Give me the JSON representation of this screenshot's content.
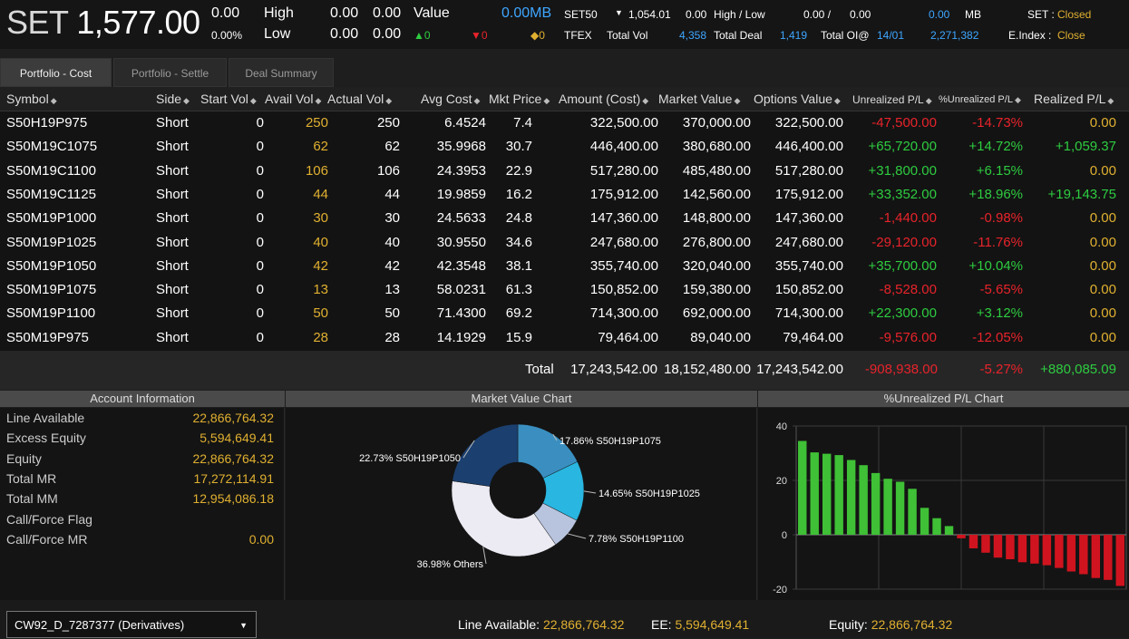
{
  "top": {
    "index_label": "SET",
    "index_value": "1,577.00",
    "chg": "0.00",
    "chg_pct": "0.00%",
    "high_label": "High",
    "high_v1": "0.00",
    "high_v2": "0.00",
    "low_label": "Low",
    "low_v1": "0.00",
    "low_v2": "0.00",
    "value_label": "Value",
    "value_v": "0.00MB",
    "up": "▲0",
    "down": "▼0",
    "unch": "◆0",
    "set50_label": "SET50",
    "set50_arrow": "▼",
    "set50_value": "1,054.01",
    "set50_chg": "0.00",
    "hl_label": "High / Low",
    "hl_high": "0.00 /",
    "hl_low": "0.00",
    "mb_value": "0.00",
    "mb_unit": "MB",
    "tfex_label": "TFEX",
    "totvol_label": "Total Vol",
    "totvol": "4,358",
    "totdeal_label": "Total Deal",
    "totdeal": "1,419",
    "totoi_label": "Total OI@",
    "totoi_date": "14/01",
    "totoi": "2,271,382",
    "set_status_label": "SET :",
    "set_status": "Closed",
    "eindex_label": "E.Index :",
    "eindex_status": "Close"
  },
  "tabs": [
    "Portfolio - Cost",
    "Portfolio - Settle",
    "Deal Summary"
  ],
  "columns": [
    "Symbol",
    "Side",
    "Start Vol",
    "Avail Vol",
    "Actual Vol",
    "Avg Cost",
    "Mkt Price",
    "Amount (Cost)",
    "Market Value",
    "Options Value",
    "Unrealized P/L",
    "%Unrealized P/L",
    "Realized P/L"
  ],
  "rows": [
    [
      "S50H19P975",
      "Short",
      "0",
      "250",
      "250",
      "6.4524",
      "7.4",
      "322,500.00",
      "370,000.00",
      "322,500.00",
      "-47,500.00",
      "-14.73%",
      "0.00"
    ],
    [
      "S50M19C1075",
      "Short",
      "0",
      "62",
      "62",
      "35.9968",
      "30.7",
      "446,400.00",
      "380,680.00",
      "446,400.00",
      "+65,720.00",
      "+14.72%",
      "+1,059.37"
    ],
    [
      "S50M19C1100",
      "Short",
      "0",
      "106",
      "106",
      "24.3953",
      "22.9",
      "517,280.00",
      "485,480.00",
      "517,280.00",
      "+31,800.00",
      "+6.15%",
      "0.00"
    ],
    [
      "S50M19C1125",
      "Short",
      "0",
      "44",
      "44",
      "19.9859",
      "16.2",
      "175,912.00",
      "142,560.00",
      "175,912.00",
      "+33,352.00",
      "+18.96%",
      "+19,143.75"
    ],
    [
      "S50M19P1000",
      "Short",
      "0",
      "30",
      "30",
      "24.5633",
      "24.8",
      "147,360.00",
      "148,800.00",
      "147,360.00",
      "-1,440.00",
      "-0.98%",
      "0.00"
    ],
    [
      "S50M19P1025",
      "Short",
      "0",
      "40",
      "40",
      "30.9550",
      "34.6",
      "247,680.00",
      "276,800.00",
      "247,680.00",
      "-29,120.00",
      "-11.76%",
      "0.00"
    ],
    [
      "S50M19P1050",
      "Short",
      "0",
      "42",
      "42",
      "42.3548",
      "38.1",
      "355,740.00",
      "320,040.00",
      "355,740.00",
      "+35,700.00",
      "+10.04%",
      "0.00"
    ],
    [
      "S50M19P1075",
      "Short",
      "0",
      "13",
      "13",
      "58.0231",
      "61.3",
      "150,852.00",
      "159,380.00",
      "150,852.00",
      "-8,528.00",
      "-5.65%",
      "0.00"
    ],
    [
      "S50M19P1100",
      "Short",
      "0",
      "50",
      "50",
      "71.4300",
      "69.2",
      "714,300.00",
      "692,000.00",
      "714,300.00",
      "+22,300.00",
      "+3.12%",
      "0.00"
    ],
    [
      "S50M19P975",
      "Short",
      "0",
      "28",
      "28",
      "14.1929",
      "15.9",
      "79,464.00",
      "89,040.00",
      "79,464.00",
      "-9,576.00",
      "-12.05%",
      "0.00"
    ]
  ],
  "totals": {
    "label": "Total",
    "amount": "17,243,542.00",
    "market": "18,152,480.00",
    "options": "17,243,542.00",
    "upl": "-908,938.00",
    "upl_pct": "-5.27%",
    "rpl": "+880,085.09"
  },
  "sections": {
    "account": "Account Information",
    "mv_chart": "Market Value Chart",
    "upl_chart": "%Unrealized P/L Chart"
  },
  "account": [
    {
      "label": "Line Available",
      "value": "22,866,764.32"
    },
    {
      "label": "Excess Equity",
      "value": "5,594,649.41"
    },
    {
      "label": "Equity",
      "value": "22,866,764.32"
    },
    {
      "label": "Total MR",
      "value": "17,272,114.91"
    },
    {
      "label": "Total MM",
      "value": "12,954,086.18"
    },
    {
      "label": "Call/Force Flag",
      "value": ""
    },
    {
      "label": "Call/Force MR",
      "value": "0.00"
    }
  ],
  "chart_data": [
    {
      "type": "pie",
      "title": "Market Value Chart",
      "slices": [
        {
          "label": "17.86% S50H19P1075",
          "value": 17.86,
          "color": "#3a8fc0"
        },
        {
          "label": "14.65% S50H19P1025",
          "value": 14.65,
          "color": "#29b6e0"
        },
        {
          "label": "7.78% S50H19P1100",
          "value": 7.78,
          "color": "#b8c4de"
        },
        {
          "label": "36.98% Others",
          "value": 36.98,
          "color": "#eceaf2"
        },
        {
          "label": "22.73% S50H19P1050",
          "value": 22.73,
          "color": "#1b3f6e"
        }
      ]
    },
    {
      "type": "bar",
      "title": "%Unrealized P/L Chart",
      "ylim": [
        -20,
        40
      ],
      "yticks": [
        "40",
        "20",
        "0",
        "-20"
      ],
      "values": [
        34.5,
        30.3,
        29.8,
        29.3,
        27.5,
        25.6,
        22.7,
        20.6,
        19.5,
        16.9,
        9.9,
        6.1,
        3.2,
        -1.3,
        -5.0,
        -6.6,
        -8.4,
        -9.0,
        -10.1,
        -10.6,
        -11.2,
        -12.2,
        -13.5,
        -14.5,
        -15.9,
        -16.6,
        -18.8
      ],
      "colors": {
        "pos": "#3fc036",
        "neg": "#d0141f"
      }
    }
  ],
  "bottom": {
    "account_select": "CW92_D_7287377 (Derivatives)",
    "line_label": "Line Available:",
    "line_value": "22,866,764.32",
    "ee_label": "EE:",
    "ee_value": "5,594,649.41",
    "eq_label": "Equity:",
    "eq_value": "22,866,764.32"
  }
}
